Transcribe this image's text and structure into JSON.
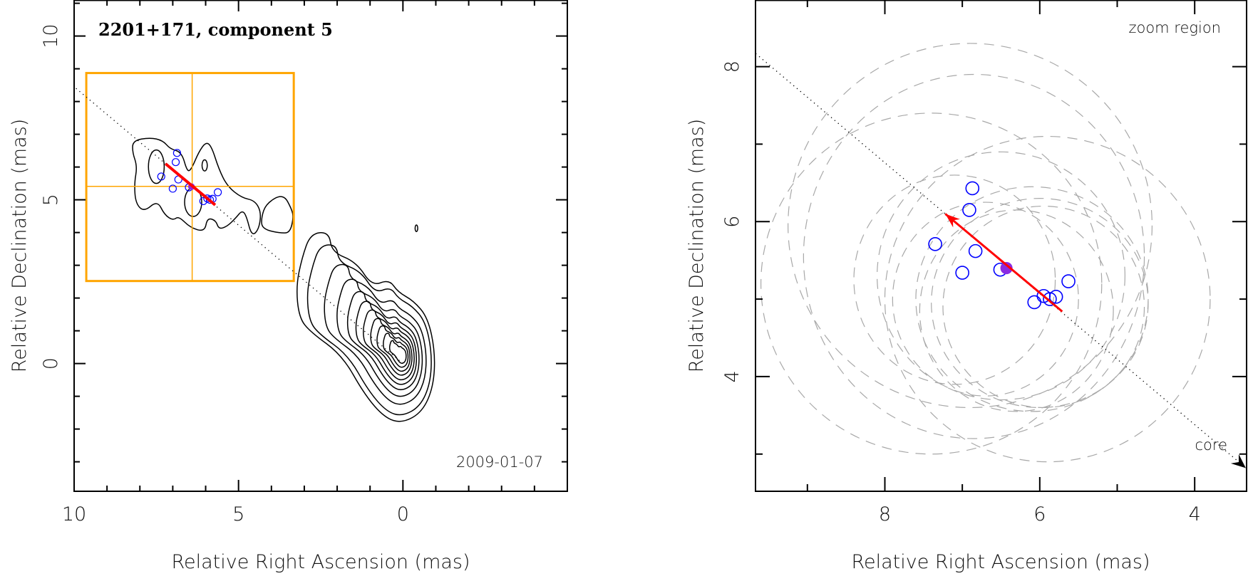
{
  "chart_data": [
    {
      "type": "contour",
      "title": "2201+171, component 5",
      "annotation": "2009-01-07",
      "xlabel": "Relative Right Ascension (mas)",
      "ylabel": "Relative Declination (mas)",
      "xlim": [
        10,
        -5
      ],
      "ylim": [
        -3.9,
        11.1
      ],
      "xticks_major": [
        10,
        5,
        0
      ],
      "xtick_labels": [
        "10",
        "5",
        "0"
      ],
      "yticks_major": [
        10,
        5,
        0
      ],
      "ytick_labels": [
        "10",
        "5",
        "0"
      ],
      "minor_tick_step": 1,
      "zoom_box": {
        "ra": [
          9.63,
          3.32
        ],
        "dec": [
          2.52,
          8.87
        ],
        "cross": [
          6.41,
          5.41
        ]
      },
      "core_outer_contour": [
        [
          2.81,
          3.97
        ],
        [
          2.25,
          4.02
        ],
        [
          2.16,
          3.4
        ],
        [
          1.42,
          3.1
        ],
        [
          0.94,
          2.36
        ],
        [
          0.42,
          2.57
        ],
        [
          0.15,
          2.18
        ],
        [
          -0.32,
          1.92
        ],
        [
          -0.76,
          1.4
        ],
        [
          -0.98,
          0.35
        ],
        [
          -0.93,
          -0.7
        ],
        [
          -0.59,
          -1.48
        ],
        [
          0.02,
          -1.82
        ],
        [
          0.55,
          -1.66
        ],
        [
          1.16,
          -0.96
        ],
        [
          1.85,
          0.26
        ],
        [
          2.81,
          0.96
        ],
        [
          3.16,
          1.4
        ],
        [
          3.25,
          2.36
        ],
        [
          3.07,
          3.23
        ]
      ],
      "core_center": [
        0.02,
        0.25
      ],
      "core_contour_scales": [
        1,
        0.9,
        0.74,
        0.62,
        0.52,
        0.44,
        0.37,
        0.3,
        0.24,
        0.18,
        0.12
      ],
      "jet_contours": [
        [
          [
            8.21,
            6.81
          ],
          [
            7.69,
            6.9
          ],
          [
            7.3,
            6.81
          ],
          [
            7.08,
            6.55
          ],
          [
            6.73,
            6.46
          ],
          [
            6.56,
            5.85
          ],
          [
            6.43,
            5.94
          ],
          [
            6.21,
            6.46
          ],
          [
            5.99,
            6.77
          ],
          [
            5.82,
            6.63
          ],
          [
            5.6,
            5.94
          ],
          [
            5.34,
            5.41
          ],
          [
            4.9,
            5.06
          ],
          [
            4.51,
            4.98
          ],
          [
            4.31,
            4.63
          ],
          [
            4.38,
            4.1
          ],
          [
            4.6,
            3.88
          ],
          [
            4.77,
            4.54
          ],
          [
            4.9,
            4.67
          ],
          [
            5.08,
            4.45
          ],
          [
            5.34,
            4.19
          ],
          [
            5.6,
            4.1
          ],
          [
            5.69,
            4.37
          ],
          [
            5.95,
            4.45
          ],
          [
            6.03,
            4.02
          ],
          [
            6.47,
            4.15
          ],
          [
            6.82,
            4.5
          ],
          [
            6.99,
            4.37
          ],
          [
            7.25,
            4.54
          ],
          [
            7.47,
            4.98
          ],
          [
            7.87,
            4.63
          ],
          [
            8.13,
            4.89
          ],
          [
            8.17,
            5.5
          ],
          [
            8.08,
            6.02
          ],
          [
            8.23,
            6.46
          ]
        ],
        [
          [
            3.64,
            5.19
          ],
          [
            3.38,
            4.71
          ],
          [
            3.33,
            4.45
          ],
          [
            3.43,
            4.02
          ],
          [
            3.66,
            3.97
          ],
          [
            4.28,
            4.1
          ],
          [
            4.31,
            4.45
          ],
          [
            4.16,
            4.89
          ]
        ]
      ],
      "jet_ellipse_contours": [
        {
          "cx": 7.5,
          "cy": 6.01,
          "rx": 0.24,
          "ry": 0.51
        },
        {
          "cx": 6.03,
          "cy": 6.05,
          "rx": 0.08,
          "ry": 0.17
        },
        {
          "cx": 6.38,
          "cy": 4.93,
          "rx": 0.26,
          "ry": 0.44
        },
        {
          "cx": -0.41,
          "cy": 4.13,
          "rx": 0.04,
          "ry": 0.1
        }
      ]
    },
    {
      "type": "scatter",
      "title": "zoom region",
      "xlabel": "Relative Right Ascension (mas)",
      "ylabel": "Relative Declination (mas)",
      "xlim": [
        9.67,
        3.33
      ],
      "ylim": [
        2.52,
        8.86
      ],
      "xticks_major": [
        8,
        6,
        4
      ],
      "xtick_labels": [
        "8",
        "6",
        "4"
      ],
      "yticks_major": [
        8,
        6,
        4
      ],
      "ytick_labels": [
        "8",
        "6",
        "4"
      ],
      "minor_tick_step": 1,
      "core_label": "core",
      "core_arrow_tip": [
        3.34,
        2.82
      ],
      "uncertainty_ellipses": [
        {
          "cx": 6.9,
          "cy": 5.95,
          "rx": 2.35,
          "ry": 2.35
        },
        {
          "cx": 6.85,
          "cy": 5.55,
          "rx": 2.2,
          "ry": 2.35
        },
        {
          "cx": 7.4,
          "cy": 5.2,
          "rx": 2.2,
          "ry": 2.2
        },
        {
          "cx": 5.9,
          "cy": 5.0,
          "rx": 2.1,
          "ry": 2.1
        },
        {
          "cx": 6.5,
          "cy": 5.3,
          "rx": 1.6,
          "ry": 1.6
        },
        {
          "cx": 6.1,
          "cy": 5.0,
          "rx": 1.5,
          "ry": 1.45
        },
        {
          "cx": 6.0,
          "cy": 4.95,
          "rx": 1.4,
          "ry": 1.35
        },
        {
          "cx": 5.95,
          "cy": 4.9,
          "rx": 1.3,
          "ry": 1.3
        },
        {
          "cx": 6.3,
          "cy": 4.85,
          "rx": 1.25,
          "ry": 1.3
        },
        {
          "cx": 7.1,
          "cy": 5.25,
          "rx": 1.3,
          "ry": 1.35
        },
        {
          "cx": 6.7,
          "cy": 5.0,
          "rx": 1.2,
          "ry": 1.25
        }
      ]
    }
  ],
  "shared": {
    "positions": [
      [
        6.87,
        6.43
      ],
      [
        6.91,
        6.15
      ],
      [
        7.35,
        5.71
      ],
      [
        6.83,
        5.62
      ],
      [
        7.0,
        5.34
      ],
      [
        6.51,
        5.38
      ],
      [
        5.63,
        5.23
      ],
      [
        6.07,
        4.96
      ],
      [
        5.95,
        5.04
      ],
      [
        5.87,
        5.0
      ],
      [
        5.79,
        5.03
      ]
    ],
    "mean_position": [
      6.43,
      5.4
    ],
    "motion_vector": {
      "from": [
        5.71,
        4.84
      ],
      "to": [
        7.22,
        6.1
      ]
    },
    "ridge_slope": 0.845,
    "colors": {
      "zoom_box": "#ffa500",
      "positions": "#0000ff",
      "mean": "#8a2be2",
      "vector": "#ff0000",
      "ellipses": "#a8a8a8",
      "contours": "#000000"
    }
  }
}
